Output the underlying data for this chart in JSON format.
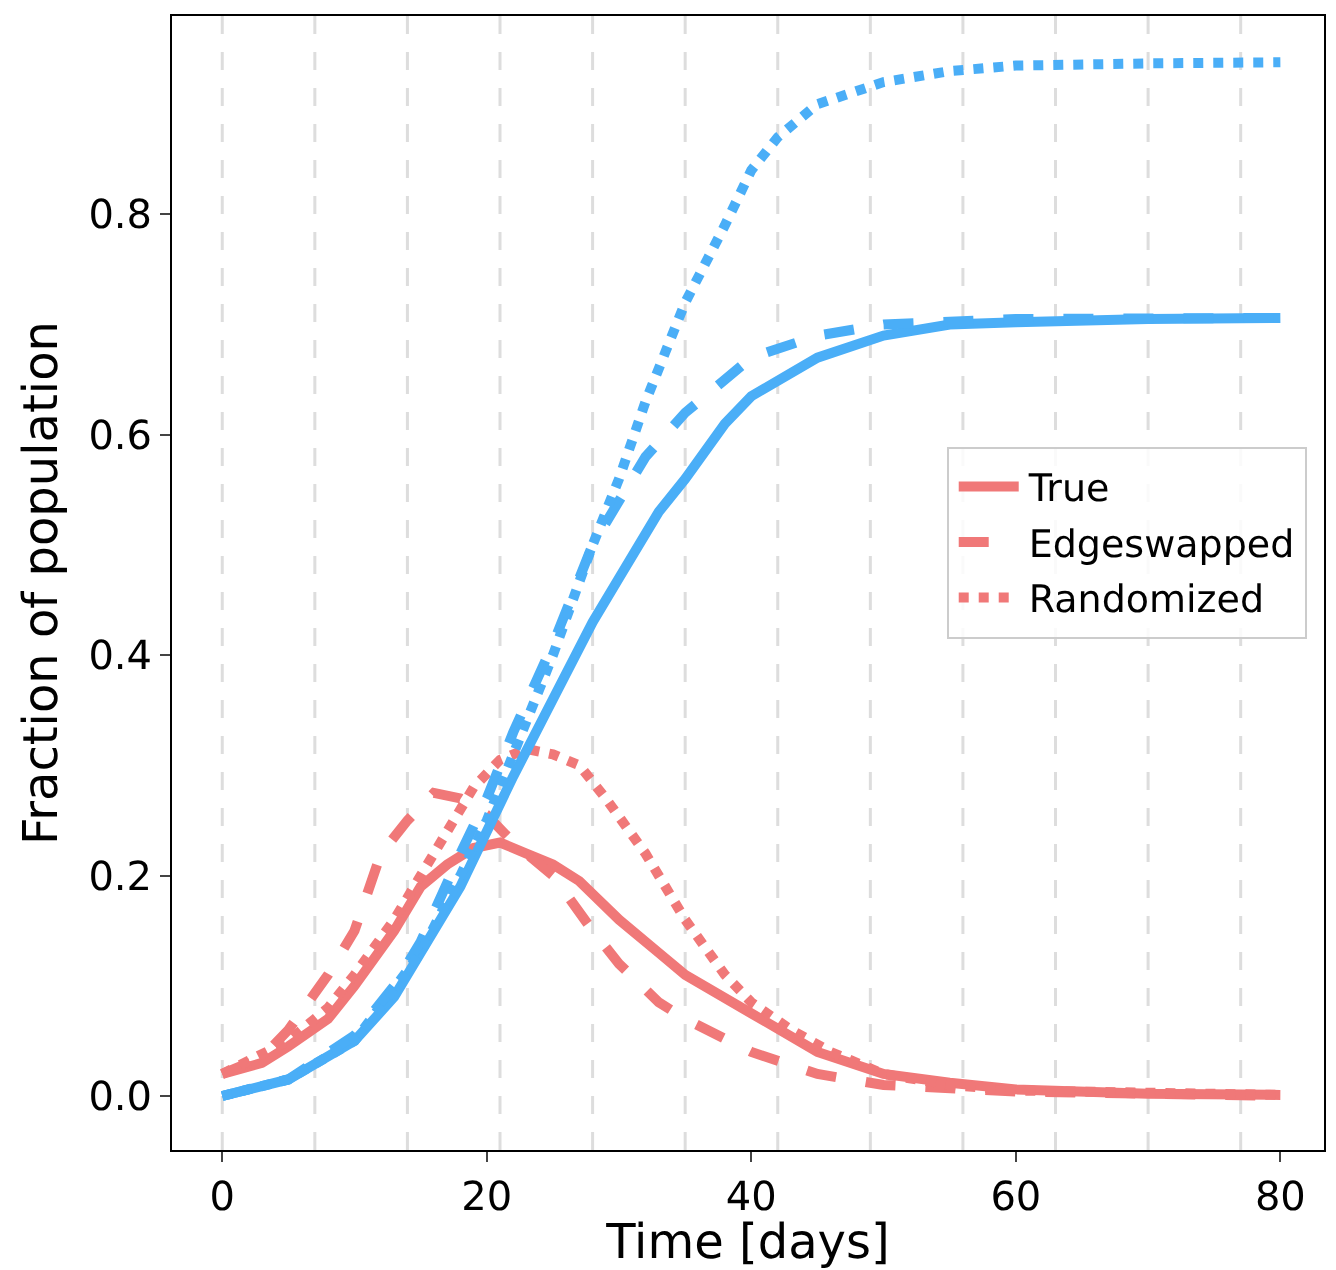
{
  "chart_data": {
    "type": "line",
    "xlabel": "Time [days]",
    "ylabel": "Fraction of population",
    "xlim": [
      -3.8,
      83.3
    ],
    "xticks": [
      0,
      20,
      40,
      60,
      80
    ],
    "ylim": [
      -0.049,
      0.98
    ],
    "yticks": [
      {
        "value": 0,
        "label": "0.0"
      },
      {
        "value": 0.2,
        "label": "0.2"
      },
      {
        "value": 0.4,
        "label": "0.4"
      },
      {
        "value": 0.6,
        "label": "0.6"
      },
      {
        "value": 0.8,
        "label": "0.8"
      }
    ],
    "grid": false,
    "legend": "right",
    "marker": "none",
    "ref_lines": [
      {
        "axis": "x",
        "value": 0,
        "color": "#dddddd",
        "line_style": "dashed"
      },
      {
        "axis": "x",
        "value": 7,
        "color": "#dddddd",
        "line_style": "dashed"
      },
      {
        "axis": "x",
        "value": 14,
        "color": "#dddddd",
        "line_style": "dashed"
      },
      {
        "axis": "x",
        "value": 21,
        "color": "#dddddd",
        "line_style": "dashed"
      },
      {
        "axis": "x",
        "value": 28,
        "color": "#dddddd",
        "line_style": "dashed"
      },
      {
        "axis": "x",
        "value": 35,
        "color": "#dddddd",
        "line_style": "dashed"
      },
      {
        "axis": "x",
        "value": 42,
        "color": "#dddddd",
        "line_style": "dashed"
      },
      {
        "axis": "x",
        "value": 49,
        "color": "#dddddd",
        "line_style": "dashed"
      },
      {
        "axis": "x",
        "value": 56,
        "color": "#dddddd",
        "line_style": "dashed"
      },
      {
        "axis": "x",
        "value": 63,
        "color": "#dddddd",
        "line_style": "dashed"
      },
      {
        "axis": "x",
        "value": 70,
        "color": "#dddddd",
        "line_style": "dashed"
      },
      {
        "axis": "x",
        "value": 77,
        "color": "#dddddd",
        "line_style": "dashed"
      }
    ],
    "series": [
      {
        "name": "True",
        "color": "#f07878",
        "line_style": "solid",
        "x": [
          0,
          3,
          5,
          8,
          10,
          13,
          15,
          17,
          19,
          21,
          23,
          25,
          27,
          30,
          33,
          35,
          40,
          45,
          50,
          55,
          60,
          70,
          80
        ],
        "values": [
          0.02,
          0.03,
          0.045,
          0.07,
          0.1,
          0.15,
          0.19,
          0.21,
          0.225,
          0.23,
          0.22,
          0.21,
          0.195,
          0.16,
          0.13,
          0.11,
          0.075,
          0.04,
          0.02,
          0.012,
          0.006,
          0.002,
          0.001
        ]
      },
      {
        "name": "Edgeswapped",
        "color": "#f07878",
        "line_style": "dashed",
        "x": [
          0,
          3,
          5,
          8,
          10,
          12,
          14,
          16,
          18,
          20,
          22,
          25,
          28,
          30,
          33,
          35,
          40,
          45,
          50,
          60,
          80
        ],
        "values": [
          0.02,
          0.035,
          0.06,
          0.11,
          0.15,
          0.22,
          0.25,
          0.275,
          0.27,
          0.255,
          0.23,
          0.2,
          0.15,
          0.12,
          0.085,
          0.07,
          0.04,
          0.02,
          0.01,
          0.004,
          0
        ]
      },
      {
        "name": "Randomized",
        "color": "#f07878",
        "line_style": "dotted",
        "x": [
          0,
          5,
          8,
          10,
          13,
          15,
          17,
          19,
          21,
          23,
          25,
          27,
          29,
          32,
          35,
          38,
          40,
          43,
          46,
          50,
          55,
          60,
          80
        ],
        "values": [
          0.02,
          0.05,
          0.08,
          0.11,
          0.16,
          0.2,
          0.24,
          0.28,
          0.305,
          0.315,
          0.31,
          0.3,
          0.27,
          0.22,
          0.16,
          0.11,
          0.085,
          0.06,
          0.04,
          0.02,
          0.01,
          0.005,
          0.001
        ]
      },
      {
        "color": "#4aaef7",
        "line_style": "solid",
        "x": [
          0,
          5,
          10,
          13,
          15,
          18,
          20,
          22,
          25,
          28,
          30,
          33,
          35,
          38,
          40,
          45,
          50,
          55,
          60,
          70,
          80
        ],
        "values": [
          0,
          0.015,
          0.05,
          0.09,
          0.13,
          0.19,
          0.24,
          0.29,
          0.36,
          0.43,
          0.47,
          0.53,
          0.56,
          0.61,
          0.635,
          0.67,
          0.69,
          0.7,
          0.702,
          0.705,
          0.706
        ]
      },
      {
        "color": "#4aaef7",
        "line_style": "dashed",
        "x": [
          0,
          5,
          10,
          13,
          15,
          18,
          20,
          22,
          25,
          28,
          30,
          32,
          35,
          40,
          45,
          50,
          60,
          80
        ],
        "values": [
          0,
          0.015,
          0.055,
          0.1,
          0.14,
          0.22,
          0.27,
          0.33,
          0.41,
          0.5,
          0.54,
          0.58,
          0.62,
          0.67,
          0.69,
          0.7,
          0.705,
          0.706
        ]
      },
      {
        "color": "#4aaef7",
        "line_style": "dotted",
        "x": [
          0,
          5,
          10,
          15,
          18,
          20,
          22,
          25,
          28,
          30,
          32,
          35,
          38,
          40,
          42,
          45,
          50,
          55,
          60,
          70,
          80
        ],
        "values": [
          0,
          0.015,
          0.05,
          0.13,
          0.2,
          0.25,
          0.31,
          0.4,
          0.5,
          0.56,
          0.63,
          0.72,
          0.79,
          0.84,
          0.87,
          0.9,
          0.92,
          0.93,
          0.935,
          0.937,
          0.938
        ]
      }
    ]
  }
}
